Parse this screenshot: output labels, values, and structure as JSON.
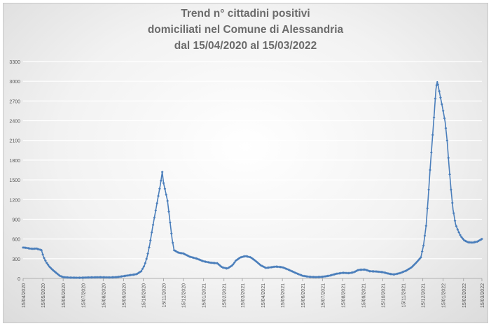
{
  "chart_data": {
    "type": "line",
    "title": [
      "Trend n° cittadini positivi",
      "domiciliati nel Comune di Alessandria",
      "dal 15/04/2020 al 15/03/2022"
    ],
    "xlabel": "",
    "ylabel": "",
    "ylim": [
      0,
      3300
    ],
    "yticks": [
      0,
      300,
      600,
      900,
      1200,
      1500,
      1800,
      2100,
      2400,
      2700,
      3000,
      3300
    ],
    "x_tick_labels": [
      "15/04/2020",
      "15/05/2020",
      "15/06/2020",
      "15/07/2020",
      "15/08/2020",
      "15/09/2020",
      "15/10/2020",
      "15/11/2020",
      "15/12/2020",
      "15/01/2021",
      "15/02/2021",
      "15/03/2021",
      "15/04/2021",
      "15/05/2021",
      "15/06/2021",
      "15/07/2021",
      "15/08/2021",
      "15/09/2021",
      "15/10/2021",
      "15/11/2021",
      "15/12/2021",
      "15/01/2022",
      "15/02/2022",
      "15/03/2022"
    ],
    "grid": true,
    "legend": "none",
    "line_color": "#4a7ebb",
    "series": [
      {
        "points": [
          [
            "2020-04-15",
            470
          ],
          [
            "2020-04-20",
            465
          ],
          [
            "2020-04-25",
            455
          ],
          [
            "2020-04-30",
            450
          ],
          [
            "2020-05-05",
            455
          ],
          [
            "2020-05-10",
            440
          ],
          [
            "2020-05-13",
            430
          ],
          [
            "2020-05-16",
            330
          ],
          [
            "2020-05-20",
            250
          ],
          [
            "2020-05-25",
            180
          ],
          [
            "2020-05-30",
            130
          ],
          [
            "2020-06-05",
            80
          ],
          [
            "2020-06-10",
            40
          ],
          [
            "2020-06-15",
            20
          ],
          [
            "2020-06-25",
            12
          ],
          [
            "2020-07-10",
            10
          ],
          [
            "2020-07-25",
            15
          ],
          [
            "2020-08-10",
            18
          ],
          [
            "2020-08-25",
            15
          ],
          [
            "2020-09-05",
            20
          ],
          [
            "2020-09-15",
            35
          ],
          [
            "2020-09-25",
            50
          ],
          [
            "2020-10-05",
            65
          ],
          [
            "2020-10-12",
            110
          ],
          [
            "2020-10-17",
            200
          ],
          [
            "2020-10-21",
            330
          ],
          [
            "2020-10-25",
            520
          ],
          [
            "2020-10-29",
            760
          ],
          [
            "2020-11-02",
            980
          ],
          [
            "2020-11-06",
            1200
          ],
          [
            "2020-11-10",
            1420
          ],
          [
            "2020-11-13",
            1620
          ],
          [
            "2020-11-15",
            1450
          ],
          [
            "2020-11-18",
            1320
          ],
          [
            "2020-11-21",
            1180
          ],
          [
            "2020-11-25",
            850
          ],
          [
            "2020-11-28",
            600
          ],
          [
            "2020-12-01",
            430
          ],
          [
            "2020-12-08",
            390
          ],
          [
            "2020-12-15",
            380
          ],
          [
            "2020-12-25",
            330
          ],
          [
            "2021-01-05",
            300
          ],
          [
            "2021-01-15",
            260
          ],
          [
            "2021-01-25",
            240
          ],
          [
            "2021-02-05",
            230
          ],
          [
            "2021-02-12",
            170
          ],
          [
            "2021-02-20",
            150
          ],
          [
            "2021-02-28",
            200
          ],
          [
            "2021-03-05",
            270
          ],
          [
            "2021-03-12",
            320
          ],
          [
            "2021-03-20",
            340
          ],
          [
            "2021-03-28",
            320
          ],
          [
            "2021-04-05",
            260
          ],
          [
            "2021-04-12",
            200
          ],
          [
            "2021-04-20",
            160
          ],
          [
            "2021-04-28",
            170
          ],
          [
            "2021-05-05",
            180
          ],
          [
            "2021-05-15",
            170
          ],
          [
            "2021-05-25",
            130
          ],
          [
            "2021-06-05",
            80
          ],
          [
            "2021-06-15",
            40
          ],
          [
            "2021-06-25",
            25
          ],
          [
            "2021-07-05",
            20
          ],
          [
            "2021-07-15",
            25
          ],
          [
            "2021-07-25",
            40
          ],
          [
            "2021-08-05",
            70
          ],
          [
            "2021-08-15",
            85
          ],
          [
            "2021-08-25",
            80
          ],
          [
            "2021-09-01",
            95
          ],
          [
            "2021-09-08",
            130
          ],
          [
            "2021-09-18",
            135
          ],
          [
            "2021-09-25",
            110
          ],
          [
            "2021-10-05",
            105
          ],
          [
            "2021-10-15",
            95
          ],
          [
            "2021-10-25",
            70
          ],
          [
            "2021-11-01",
            60
          ],
          [
            "2021-11-10",
            80
          ],
          [
            "2021-11-20",
            120
          ],
          [
            "2021-11-28",
            170
          ],
          [
            "2021-12-05",
            240
          ],
          [
            "2021-12-12",
            320
          ],
          [
            "2021-12-16",
            500
          ],
          [
            "2021-12-20",
            800
          ],
          [
            "2021-12-23",
            1200
          ],
          [
            "2021-12-26",
            1650
          ],
          [
            "2021-12-29",
            2050
          ],
          [
            "2022-01-01",
            2450
          ],
          [
            "2022-01-04",
            2880
          ],
          [
            "2022-01-06",
            3000
          ],
          [
            "2022-01-09",
            2850
          ],
          [
            "2022-01-12",
            2700
          ],
          [
            "2022-01-15",
            2550
          ],
          [
            "2022-01-18",
            2380
          ],
          [
            "2022-01-21",
            2100
          ],
          [
            "2022-01-24",
            1700
          ],
          [
            "2022-01-27",
            1350
          ],
          [
            "2022-01-30",
            1050
          ],
          [
            "2022-02-03",
            820
          ],
          [
            "2022-02-07",
            720
          ],
          [
            "2022-02-11",
            640
          ],
          [
            "2022-02-16",
            580
          ],
          [
            "2022-02-22",
            550
          ],
          [
            "2022-03-01",
            545
          ],
          [
            "2022-03-08",
            560
          ],
          [
            "2022-03-15",
            600
          ]
        ]
      }
    ]
  }
}
